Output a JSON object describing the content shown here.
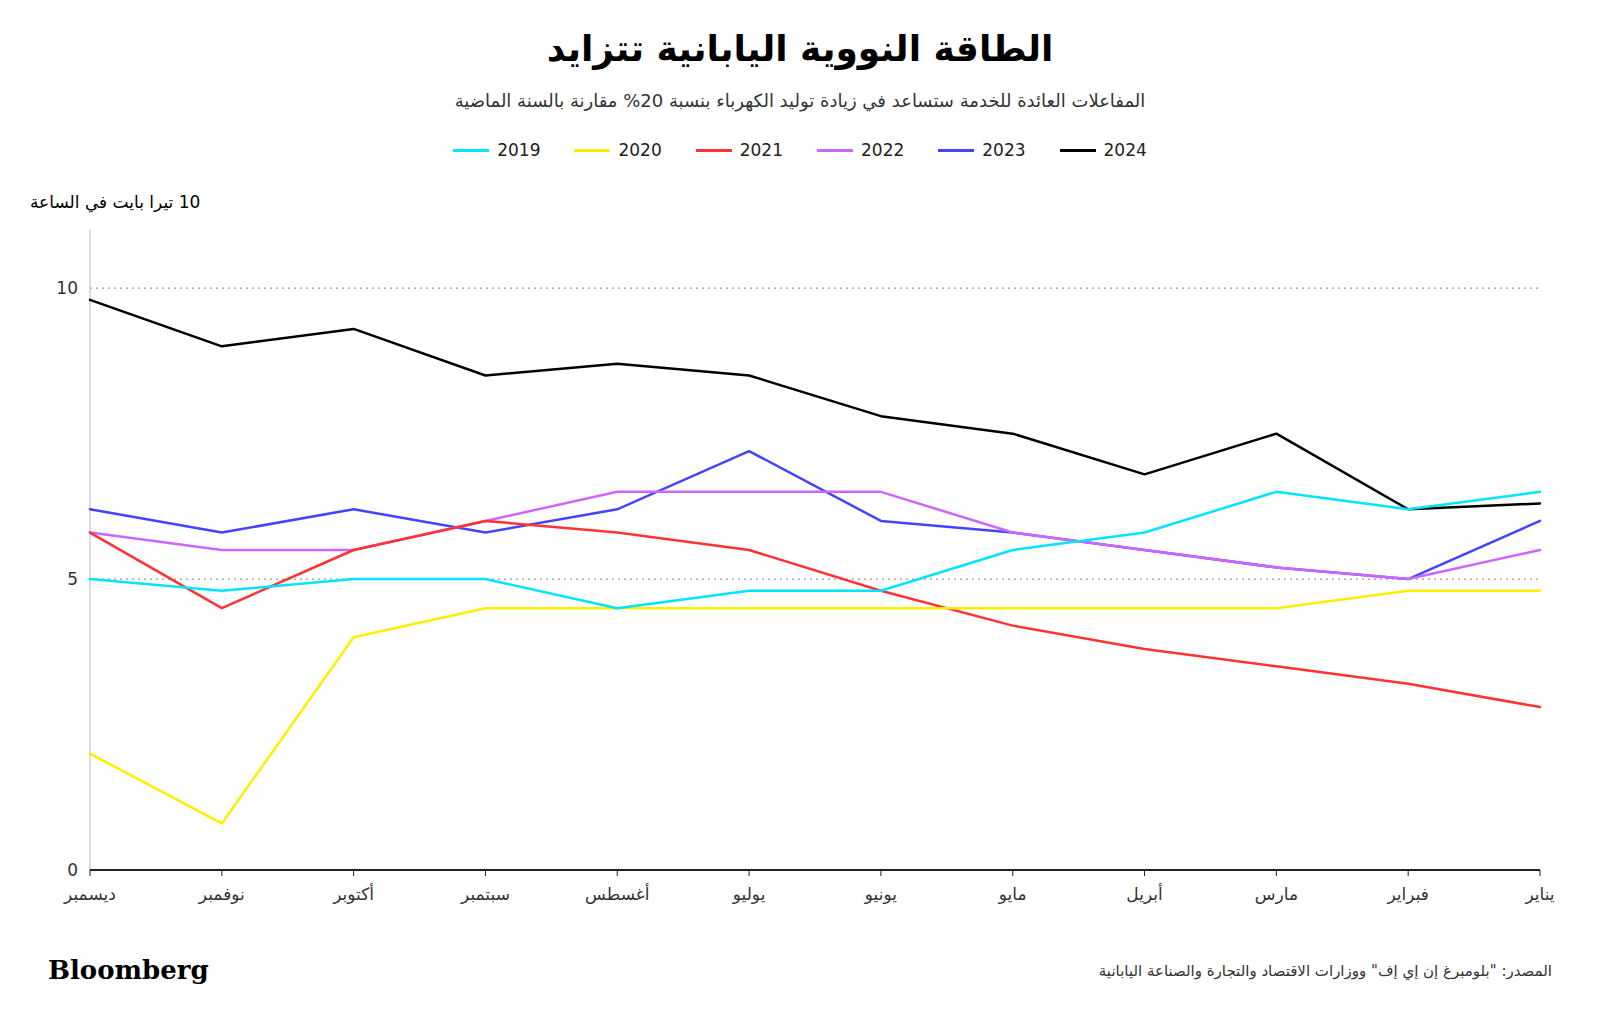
{
  "chart_data": {
    "type": "line",
    "title": "الطاقة النووية اليابانية تتزايد",
    "subtitle": "المفاعلات العائدة للخدمة ستساعد في زيادة توليد الكهرباء بنسبة 20% مقارنة بالسنة الماضية",
    "y_label": "10 تيرا بايت في الساعة",
    "annotations": [
      "Bloomberg",
      "المصدر: \"بلومبرغ إن إي إف\" ووزارات الاقتصاد والتجارة والصناعة اليابانية"
    ],
    "categories": [
      "يناير",
      "فبراير",
      "مارس",
      "أبريل",
      "مايو",
      "يونيو",
      "يوليو",
      "أغسطس",
      "سبتمبر",
      "أكتوبر",
      "نوفمبر",
      "ديسمبر"
    ],
    "series": [
      {
        "name": "2019",
        "color": "#00e5ff",
        "values": [
          6.5,
          6.2,
          6.5,
          5.8,
          5.5,
          4.8,
          4.8,
          4.5,
          5.0,
          5.0,
          4.8,
          5.0
        ]
      },
      {
        "name": "2020",
        "color": "#ffee00",
        "values": [
          4.8,
          4.8,
          4.5,
          4.5,
          4.5,
          4.5,
          4.5,
          4.5,
          4.5,
          4.0,
          0.8,
          2.0
        ]
      },
      {
        "name": "2021",
        "color": "#ff3333",
        "values": [
          2.8,
          3.2,
          3.5,
          3.8,
          4.2,
          4.8,
          5.5,
          5.8,
          6.0,
          5.5,
          4.5,
          5.8
        ]
      },
      {
        "name": "2022",
        "color": "#cc66ff",
        "values": [
          5.5,
          5.0,
          5.2,
          5.5,
          5.8,
          6.5,
          6.5,
          6.5,
          6.0,
          5.5,
          5.5,
          5.8
        ]
      },
      {
        "name": "2023",
        "color": "#4444ff",
        "values": [
          6.0,
          5.0,
          5.2,
          5.5,
          5.8,
          6.0,
          7.2,
          6.2,
          5.8,
          6.2,
          5.8,
          6.2
        ]
      },
      {
        "name": "2024",
        "color": "#000000",
        "values": [
          6.3,
          6.2,
          7.5,
          6.8,
          7.5,
          7.8,
          8.5,
          8.7,
          8.5,
          9.3,
          9.0,
          9.8
        ]
      }
    ],
    "ylim": [
      0,
      11
    ],
    "yticks": [
      0,
      5,
      10
    ],
    "grid": true,
    "legend": "top"
  }
}
